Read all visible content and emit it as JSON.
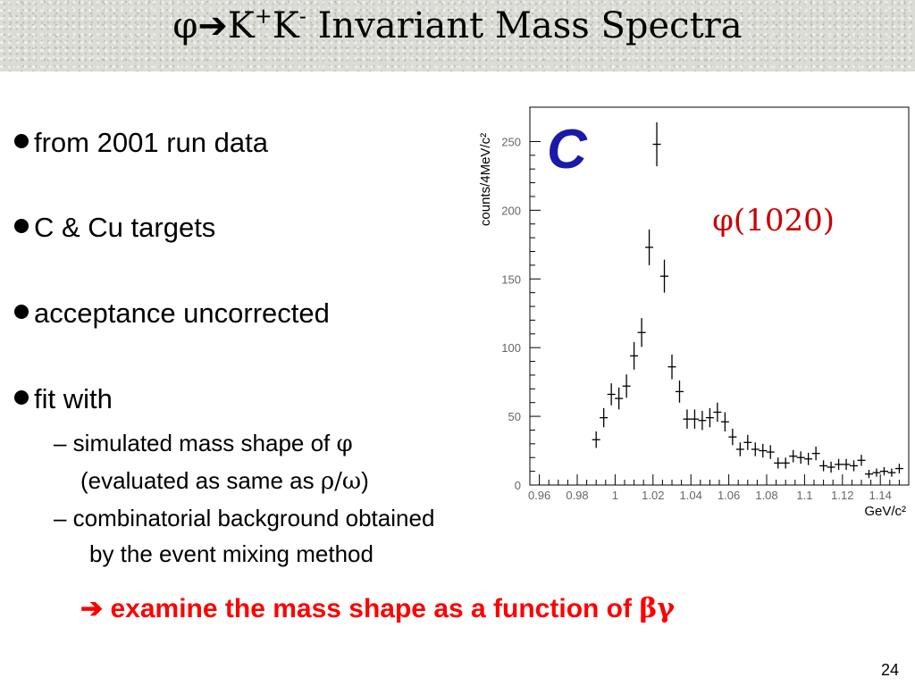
{
  "slide": {
    "title_phi": "φ",
    "title_arrow": "➔",
    "title_k1": "K",
    "title_sup_plus": "+",
    "title_k2": "K",
    "title_sup_minus": "-",
    "title_rest": " Invariant Mass Spectra",
    "bullets": [
      "from 2001 run data",
      "C & Cu targets",
      "acceptance uncorrected",
      "fit with"
    ],
    "sub1_prefix": "– simulated mass shape of ",
    "sub1_phi": "φ",
    "sub1b_prefix": "(evaluated as same as ",
    "sub1b_sym": "ρ/ω",
    "sub1b_suffix": ")",
    "sub2_line1": "– combinatorial background obtained",
    "sub2_line2": "by the event mixing method",
    "conclusion_arrow": "➔",
    "conclusion_text": " examine the mass shape as a function of ",
    "conclusion_sym": "βγ",
    "page_number": "24",
    "colors": {
      "conclusion": "#ff0000",
      "peak_label": "#cc0000",
      "panel_label": "#1a1aa8"
    }
  },
  "chart_data": {
    "type": "scatter",
    "title": "",
    "panel_label": "C",
    "peak_label": "φ(1020)",
    "xlabel": "GeV/c²",
    "ylabel": "counts/4MeV/c²",
    "xlim": [
      0.955,
      1.155
    ],
    "ylim": [
      0,
      275
    ],
    "x_ticks": [
      "0.96",
      "0.98",
      "1",
      "1.02",
      "1.04",
      "1.06",
      "1.08",
      "1.1",
      "1.12",
      "1.14"
    ],
    "x_tick_values": [
      0.96,
      0.98,
      1.0,
      1.02,
      1.04,
      1.06,
      1.08,
      1.1,
      1.12,
      1.14
    ],
    "y_ticks": [
      "0",
      "50",
      "100",
      "150",
      "200",
      "250"
    ],
    "y_tick_values": [
      0,
      50,
      100,
      150,
      200,
      250
    ],
    "grid": false,
    "points": [
      {
        "x": 0.99,
        "y": 33,
        "err": 6
      },
      {
        "x": 0.994,
        "y": 49,
        "err": 7
      },
      {
        "x": 0.998,
        "y": 66,
        "err": 8
      },
      {
        "x": 1.002,
        "y": 63,
        "err": 8
      },
      {
        "x": 1.006,
        "y": 72,
        "err": 8.5
      },
      {
        "x": 1.01,
        "y": 94,
        "err": 10
      },
      {
        "x": 1.014,
        "y": 111,
        "err": 10.5
      },
      {
        "x": 1.018,
        "y": 173,
        "err": 13
      },
      {
        "x": 1.022,
        "y": 248,
        "err": 16
      },
      {
        "x": 1.026,
        "y": 152,
        "err": 12
      },
      {
        "x": 1.03,
        "y": 86,
        "err": 9
      },
      {
        "x": 1.034,
        "y": 68,
        "err": 8
      },
      {
        "x": 1.038,
        "y": 48,
        "err": 7
      },
      {
        "x": 1.042,
        "y": 48,
        "err": 7
      },
      {
        "x": 1.046,
        "y": 47,
        "err": 7
      },
      {
        "x": 1.05,
        "y": 49,
        "err": 7
      },
      {
        "x": 1.054,
        "y": 53,
        "err": 7
      },
      {
        "x": 1.058,
        "y": 46,
        "err": 7
      },
      {
        "x": 1.062,
        "y": 35,
        "err": 6
      },
      {
        "x": 1.066,
        "y": 26,
        "err": 5
      },
      {
        "x": 1.07,
        "y": 31,
        "err": 5.5
      },
      {
        "x": 1.074,
        "y": 26,
        "err": 5
      },
      {
        "x": 1.078,
        "y": 25,
        "err": 5
      },
      {
        "x": 1.082,
        "y": 24,
        "err": 5
      },
      {
        "x": 1.086,
        "y": 16,
        "err": 4
      },
      {
        "x": 1.09,
        "y": 16,
        "err": 4
      },
      {
        "x": 1.094,
        "y": 21,
        "err": 4.5
      },
      {
        "x": 1.098,
        "y": 20,
        "err": 4.5
      },
      {
        "x": 1.102,
        "y": 19,
        "err": 4.5
      },
      {
        "x": 1.106,
        "y": 23,
        "err": 5
      },
      {
        "x": 1.11,
        "y": 14,
        "err": 4
      },
      {
        "x": 1.114,
        "y": 13,
        "err": 4
      },
      {
        "x": 1.118,
        "y": 15,
        "err": 4
      },
      {
        "x": 1.122,
        "y": 15,
        "err": 4
      },
      {
        "x": 1.126,
        "y": 14,
        "err": 4
      },
      {
        "x": 1.13,
        "y": 18,
        "err": 4
      },
      {
        "x": 1.134,
        "y": 8,
        "err": 3
      },
      {
        "x": 1.138,
        "y": 9,
        "err": 3
      },
      {
        "x": 1.142,
        "y": 10,
        "err": 3
      },
      {
        "x": 1.146,
        "y": 9,
        "err": 3
      },
      {
        "x": 1.15,
        "y": 12,
        "err": 3.5
      }
    ]
  }
}
